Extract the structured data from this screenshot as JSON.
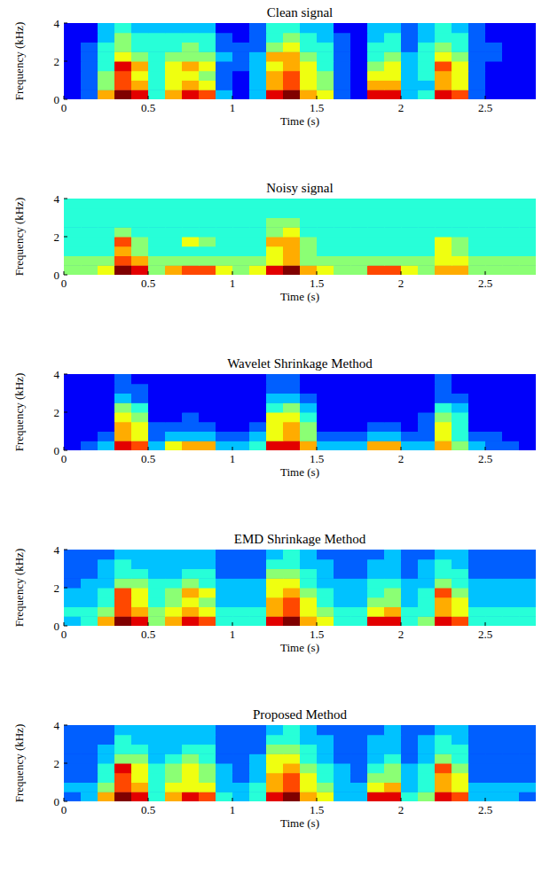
{
  "chart_data": [
    {
      "type": "heatmap",
      "title": "Clean signal",
      "x_label": "Time (s)",
      "y_label": "Frequency (kHz)",
      "xlim": [
        0,
        2.8
      ],
      "ylim": [
        0,
        4
      ],
      "xticks": [
        0,
        0.5,
        1,
        1.5,
        2,
        2.5
      ],
      "yticks": [
        0,
        2,
        4
      ],
      "cells": [
        [
          0,
          1,
          6,
          9,
          8,
          3,
          6,
          8,
          7,
          2,
          0,
          2,
          8,
          9,
          6,
          5,
          1,
          0,
          8,
          8,
          2,
          3,
          8,
          7,
          1,
          0,
          0,
          0
        ],
        [
          0,
          1,
          4,
          7,
          6,
          3,
          5,
          6,
          5,
          1,
          0,
          2,
          6,
          7,
          5,
          4,
          1,
          0,
          6,
          6,
          2,
          2,
          6,
          5,
          1,
          0,
          0,
          0
        ],
        [
          0,
          1,
          4,
          7,
          5,
          3,
          5,
          5,
          4,
          1,
          0,
          2,
          6,
          7,
          5,
          4,
          1,
          0,
          5,
          5,
          2,
          3,
          6,
          5,
          1,
          0,
          0,
          0
        ],
        [
          0,
          1,
          3,
          8,
          6,
          3,
          5,
          6,
          5,
          1,
          1,
          2,
          5,
          6,
          5,
          3,
          1,
          0,
          4,
          5,
          2,
          3,
          7,
          5,
          1,
          0,
          0,
          0
        ],
        [
          0,
          1,
          3,
          5,
          4,
          3,
          4,
          4,
          4,
          2,
          1,
          2,
          6,
          6,
          4,
          3,
          1,
          0,
          3,
          4,
          2,
          3,
          5,
          4,
          1,
          1,
          0,
          0
        ],
        [
          0,
          1,
          3,
          4,
          3,
          3,
          3,
          4,
          3,
          1,
          1,
          1,
          4,
          5,
          3,
          3,
          1,
          0,
          3,
          3,
          1,
          3,
          4,
          3,
          1,
          1,
          0,
          0
        ],
        [
          0,
          0,
          2,
          4,
          3,
          3,
          3,
          3,
          3,
          1,
          0,
          1,
          3,
          4,
          3,
          2,
          1,
          0,
          2,
          3,
          1,
          2,
          3,
          3,
          1,
          0,
          0,
          0
        ],
        [
          0,
          0,
          2,
          3,
          2,
          2,
          2,
          2,
          2,
          0,
          0,
          1,
          3,
          3,
          2,
          2,
          0,
          0,
          2,
          2,
          1,
          2,
          3,
          2,
          1,
          0,
          0,
          0
        ]
      ]
    },
    {
      "type": "heatmap",
      "title": "Noisy signal",
      "x_label": "Time (s)",
      "y_label": "Frequency (kHz)",
      "xlim": [
        0,
        2.8
      ],
      "ylim": [
        0,
        4
      ],
      "xticks": [
        0,
        0.5,
        1,
        1.5,
        2,
        2.5
      ],
      "yticks": [
        0,
        2,
        4
      ],
      "cells": [
        [
          4,
          4,
          5,
          9,
          8,
          4,
          6,
          7,
          7,
          5,
          4,
          5,
          8,
          9,
          6,
          5,
          4,
          4,
          7,
          7,
          5,
          4,
          6,
          6,
          4,
          4,
          4,
          4
        ],
        [
          4,
          4,
          4,
          7,
          6,
          4,
          4,
          4,
          4,
          4,
          4,
          4,
          5,
          6,
          4,
          4,
          4,
          4,
          4,
          4,
          4,
          4,
          5,
          5,
          4,
          4,
          4,
          4
        ],
        [
          3,
          3,
          3,
          6,
          4,
          3,
          3,
          3,
          3,
          3,
          3,
          3,
          5,
          6,
          4,
          3,
          3,
          3,
          3,
          3,
          3,
          3,
          5,
          4,
          3,
          3,
          3,
          3
        ],
        [
          3,
          3,
          3,
          7,
          4,
          3,
          3,
          5,
          4,
          3,
          3,
          3,
          6,
          6,
          4,
          3,
          3,
          3,
          3,
          3,
          3,
          3,
          5,
          4,
          3,
          3,
          3,
          3
        ],
        [
          3,
          3,
          3,
          4,
          3,
          3,
          3,
          3,
          3,
          3,
          3,
          3,
          4,
          5,
          3,
          3,
          3,
          3,
          3,
          3,
          3,
          3,
          3,
          3,
          3,
          3,
          3,
          3
        ],
        [
          3,
          3,
          3,
          3,
          3,
          3,
          3,
          3,
          3,
          3,
          3,
          3,
          4,
          4,
          3,
          3,
          3,
          3,
          3,
          3,
          3,
          3,
          3,
          3,
          3,
          3,
          3,
          3
        ],
        [
          3,
          3,
          3,
          3,
          3,
          3,
          3,
          3,
          3,
          3,
          3,
          3,
          3,
          3,
          3,
          3,
          3,
          3,
          3,
          3,
          3,
          3,
          3,
          3,
          3,
          3,
          3,
          3
        ],
        [
          3,
          3,
          3,
          3,
          3,
          3,
          3,
          3,
          3,
          3,
          3,
          3,
          3,
          3,
          3,
          3,
          3,
          3,
          3,
          3,
          3,
          3,
          3,
          3,
          3,
          3,
          3,
          3
        ]
      ]
    },
    {
      "type": "heatmap",
      "title": "Wavelet Shrinkage Method",
      "x_label": "Time (s)",
      "y_label": "Frequency (kHz)",
      "xlim": [
        0,
        2.8
      ],
      "ylim": [
        0,
        4
      ],
      "xticks": [
        0,
        0.5,
        1,
        1.5,
        2,
        2.5
      ],
      "yticks": [
        0,
        2,
        4
      ],
      "cells": [
        [
          0,
          1,
          2,
          8,
          7,
          2,
          5,
          6,
          6,
          2,
          2,
          3,
          8,
          8,
          6,
          2,
          2,
          2,
          6,
          6,
          2,
          2,
          6,
          4,
          2,
          1,
          1,
          0
        ],
        [
          0,
          0,
          1,
          6,
          5,
          1,
          2,
          2,
          2,
          1,
          1,
          2,
          5,
          6,
          4,
          1,
          1,
          1,
          2,
          2,
          1,
          1,
          5,
          3,
          1,
          1,
          0,
          0
        ],
        [
          0,
          0,
          0,
          6,
          5,
          1,
          1,
          1,
          1,
          0,
          0,
          1,
          5,
          6,
          4,
          0,
          0,
          0,
          1,
          1,
          0,
          1,
          5,
          3,
          0,
          0,
          0,
          0
        ],
        [
          0,
          0,
          0,
          5,
          4,
          0,
          0,
          1,
          0,
          0,
          0,
          0,
          5,
          5,
          3,
          0,
          0,
          0,
          0,
          0,
          0,
          1,
          4,
          3,
          0,
          0,
          0,
          0
        ],
        [
          0,
          0,
          0,
          4,
          3,
          0,
          0,
          0,
          0,
          0,
          0,
          0,
          3,
          4,
          2,
          0,
          0,
          0,
          0,
          0,
          0,
          0,
          3,
          2,
          0,
          0,
          0,
          0
        ],
        [
          0,
          0,
          0,
          2,
          1,
          0,
          0,
          0,
          0,
          0,
          0,
          0,
          2,
          2,
          1,
          0,
          0,
          0,
          0,
          0,
          0,
          0,
          1,
          1,
          0,
          0,
          0,
          0
        ],
        [
          0,
          0,
          0,
          1,
          1,
          0,
          0,
          0,
          0,
          0,
          0,
          0,
          1,
          1,
          0,
          0,
          0,
          0,
          0,
          0,
          0,
          0,
          1,
          0,
          0,
          0,
          0,
          0
        ],
        [
          0,
          0,
          0,
          1,
          0,
          0,
          0,
          0,
          0,
          0,
          0,
          0,
          1,
          1,
          0,
          0,
          0,
          0,
          0,
          0,
          0,
          0,
          1,
          0,
          0,
          0,
          0,
          0
        ]
      ]
    },
    {
      "type": "heatmap",
      "title": "EMD Shrinkage Method",
      "x_label": "Time (s)",
      "y_label": "Frequency (kHz)",
      "xlim": [
        0,
        2.8
      ],
      "ylim": [
        0,
        4
      ],
      "xticks": [
        0,
        0.5,
        1,
        1.5,
        2,
        2.5
      ],
      "yticks": [
        0,
        2,
        4
      ],
      "cells": [
        [
          2,
          3,
          6,
          9,
          8,
          4,
          6,
          8,
          7,
          3,
          3,
          3,
          8,
          9,
          6,
          5,
          3,
          3,
          8,
          8,
          3,
          4,
          8,
          7,
          3,
          3,
          3,
          3
        ],
        [
          3,
          3,
          4,
          7,
          6,
          4,
          5,
          6,
          5,
          3,
          3,
          3,
          6,
          7,
          5,
          4,
          3,
          3,
          5,
          6,
          3,
          3,
          6,
          5,
          3,
          3,
          3,
          3
        ],
        [
          2,
          2,
          3,
          7,
          5,
          3,
          4,
          5,
          4,
          2,
          2,
          2,
          6,
          7,
          5,
          3,
          2,
          2,
          4,
          4,
          2,
          3,
          6,
          5,
          2,
          2,
          2,
          2
        ],
        [
          2,
          2,
          3,
          7,
          5,
          3,
          4,
          6,
          5,
          2,
          2,
          2,
          5,
          6,
          4,
          3,
          2,
          2,
          3,
          4,
          2,
          3,
          7,
          4,
          2,
          2,
          2,
          2
        ],
        [
          1,
          2,
          2,
          4,
          4,
          3,
          3,
          4,
          3,
          2,
          2,
          2,
          5,
          5,
          3,
          2,
          2,
          2,
          3,
          3,
          2,
          2,
          4,
          3,
          2,
          2,
          2,
          2
        ],
        [
          1,
          1,
          2,
          3,
          3,
          2,
          2,
          3,
          3,
          1,
          1,
          1,
          4,
          4,
          3,
          2,
          1,
          1,
          2,
          2,
          1,
          2,
          3,
          3,
          1,
          1,
          1,
          1
        ],
        [
          1,
          1,
          2,
          3,
          2,
          2,
          2,
          2,
          2,
          1,
          1,
          1,
          3,
          3,
          2,
          2,
          1,
          1,
          2,
          2,
          1,
          2,
          3,
          2,
          1,
          1,
          1,
          1
        ],
        [
          1,
          1,
          1,
          2,
          2,
          2,
          2,
          2,
          2,
          1,
          1,
          1,
          2,
          3,
          2,
          1,
          1,
          1,
          1,
          2,
          1,
          1,
          2,
          2,
          1,
          1,
          1,
          1
        ]
      ]
    },
    {
      "type": "heatmap",
      "title": "Proposed Method",
      "x_label": "Time (s)",
      "y_label": "Frequency (kHz)",
      "xlim": [
        0,
        2.8
      ],
      "ylim": [
        0,
        4
      ],
      "xticks": [
        0,
        0.5,
        1,
        1.5,
        2,
        2.5
      ],
      "yticks": [
        0,
        2,
        4
      ],
      "cells": [
        [
          1,
          2,
          6,
          9,
          8,
          3,
          6,
          8,
          7,
          3,
          2,
          3,
          8,
          9,
          6,
          5,
          2,
          2,
          8,
          8,
          3,
          4,
          8,
          7,
          2,
          2,
          2,
          1
        ],
        [
          2,
          2,
          4,
          7,
          6,
          3,
          5,
          5,
          5,
          2,
          2,
          3,
          6,
          7,
          5,
          4,
          2,
          2,
          5,
          6,
          2,
          3,
          6,
          5,
          2,
          2,
          2,
          2
        ],
        [
          1,
          1,
          3,
          7,
          5,
          3,
          4,
          5,
          4,
          2,
          1,
          2,
          6,
          7,
          5,
          3,
          2,
          1,
          4,
          4,
          2,
          3,
          6,
          5,
          1,
          1,
          1,
          1
        ],
        [
          1,
          1,
          3,
          8,
          5,
          3,
          4,
          5,
          4,
          2,
          1,
          2,
          5,
          6,
          4,
          3,
          2,
          1,
          3,
          4,
          2,
          3,
          7,
          4,
          1,
          1,
          1,
          1
        ],
        [
          1,
          1,
          2,
          4,
          4,
          2,
          3,
          4,
          3,
          1,
          1,
          2,
          5,
          5,
          3,
          2,
          1,
          1,
          2,
          3,
          1,
          2,
          4,
          3,
          1,
          1,
          1,
          1
        ],
        [
          1,
          1,
          2,
          3,
          3,
          2,
          2,
          3,
          3,
          1,
          1,
          1,
          4,
          4,
          3,
          2,
          1,
          1,
          2,
          2,
          1,
          2,
          3,
          3,
          1,
          1,
          1,
          1
        ],
        [
          1,
          1,
          1,
          3,
          2,
          2,
          2,
          2,
          2,
          1,
          1,
          1,
          3,
          3,
          2,
          2,
          1,
          1,
          2,
          2,
          1,
          2,
          3,
          2,
          1,
          1,
          1,
          1
        ],
        [
          1,
          1,
          1,
          2,
          2,
          2,
          2,
          2,
          2,
          1,
          1,
          1,
          2,
          3,
          2,
          1,
          1,
          1,
          1,
          2,
          1,
          1,
          2,
          2,
          1,
          1,
          1,
          1
        ]
      ]
    }
  ]
}
